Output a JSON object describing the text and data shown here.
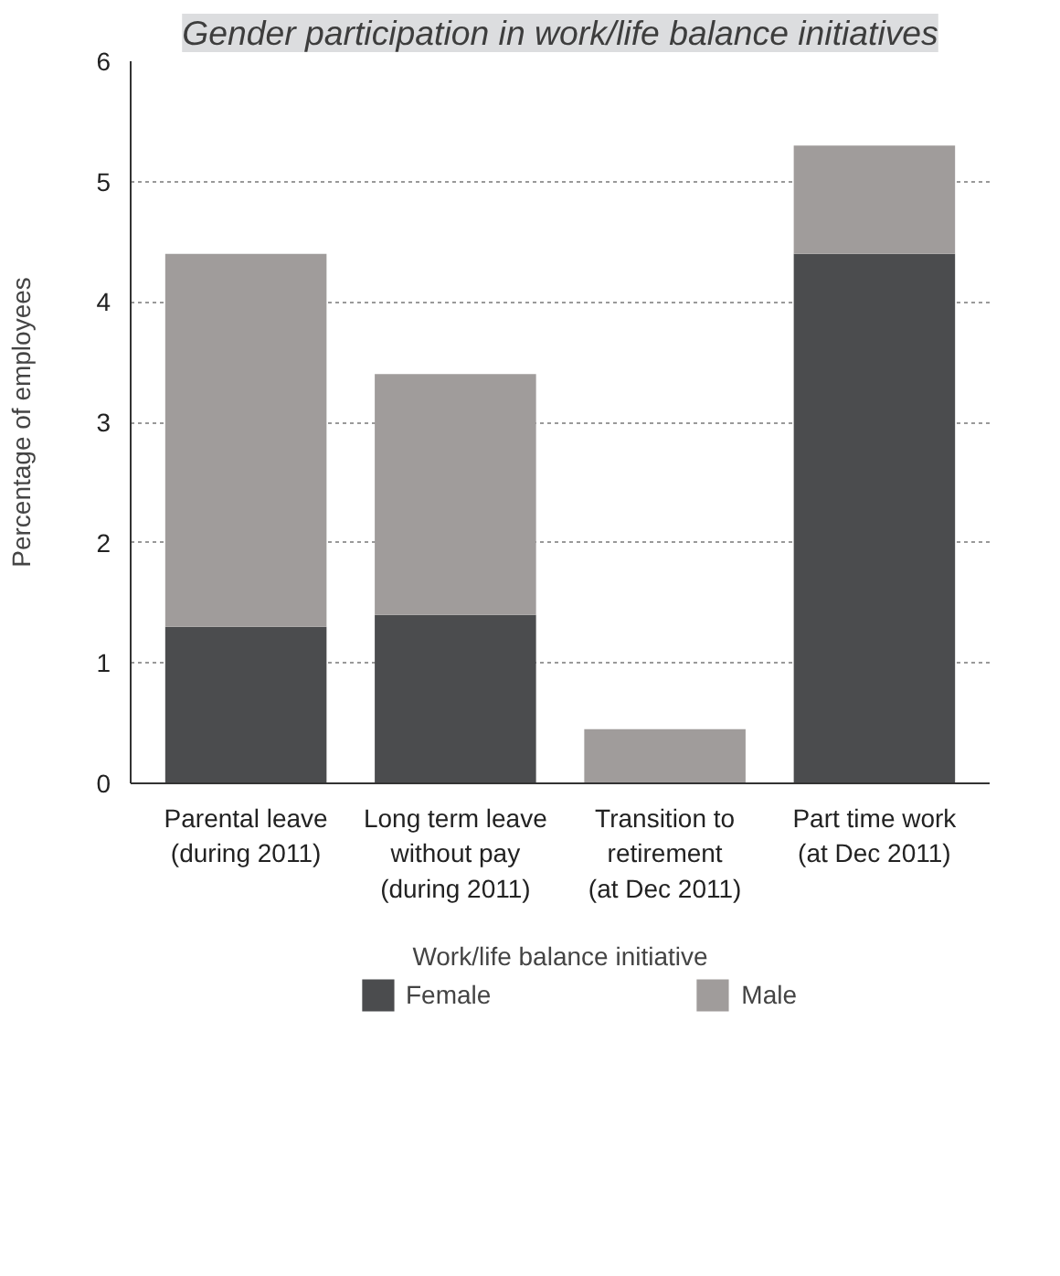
{
  "chart_data": {
    "type": "bar",
    "stacked": true,
    "title": "Gender participation in work/life balance initiatives",
    "xlabel": "Work/life balance initiative",
    "ylabel": "Percentage of employees",
    "categories": [
      "Parental leave\n(during 2011)",
      "Long term leave\nwithout pay\n(during 2011)",
      "Transition to\nretirement\n(at Dec 2011)",
      "Part time work\n(at Dec 2011)"
    ],
    "series": [
      {
        "name": "Female",
        "color": "#4b4c4e",
        "values": [
          1.3,
          1.4,
          0,
          4.4
        ]
      },
      {
        "name": "Male",
        "color": "#a09c9b",
        "values": [
          3.1,
          2.0,
          0.45,
          0.9
        ]
      }
    ],
    "ylim": [
      0,
      6
    ],
    "yticks": [
      0,
      1,
      2,
      3,
      4,
      5,
      6
    ],
    "grid": "y",
    "legend": "bottom"
  }
}
